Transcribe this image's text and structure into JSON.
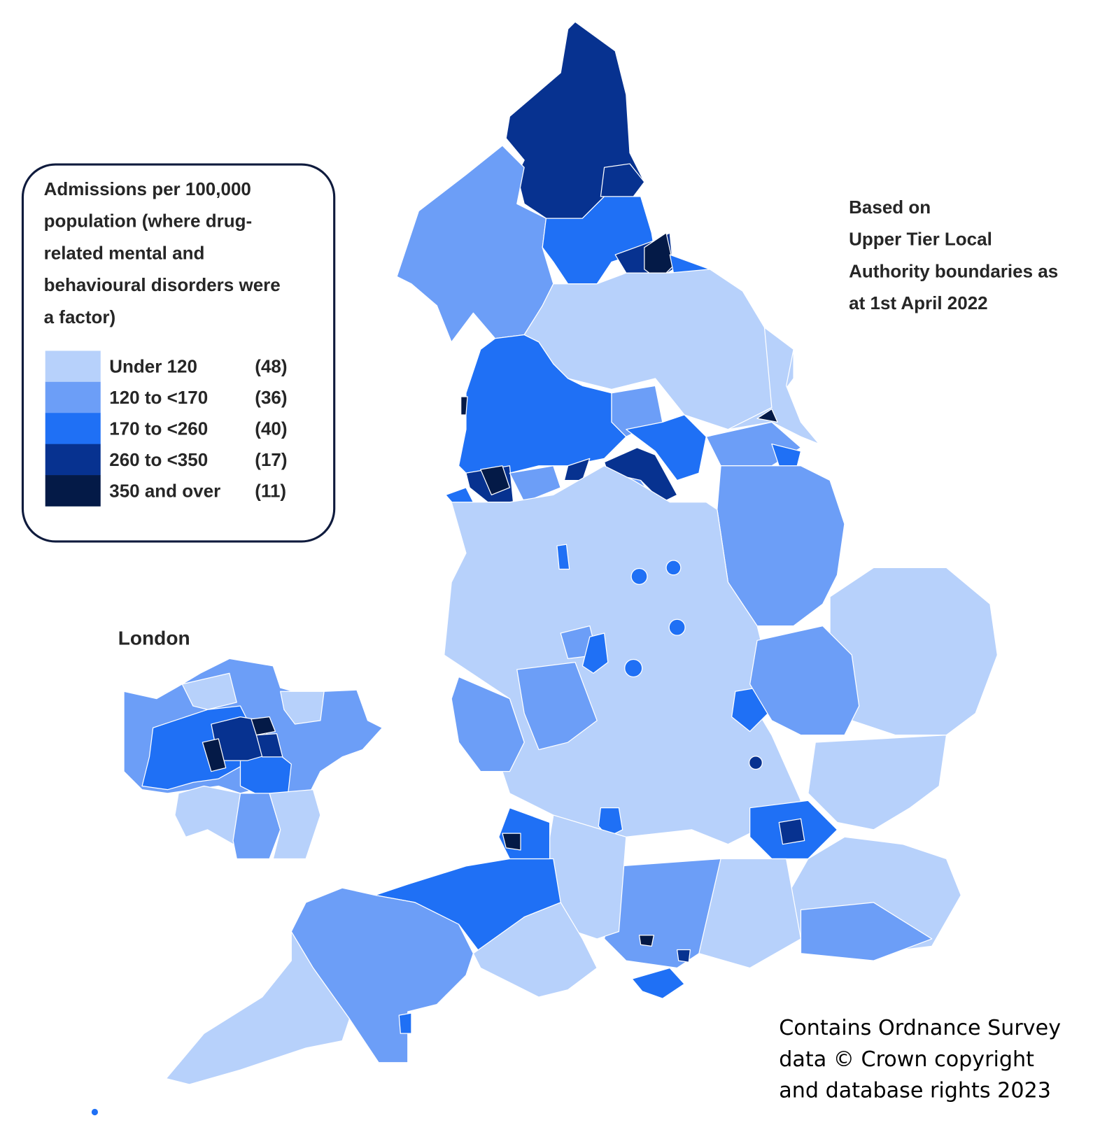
{
  "legend": {
    "title": [
      "Admissions per 100,000",
      "population (where drug-",
      "related mental and",
      "behavioural disorders were",
      "a factor)"
    ],
    "items": [
      {
        "label": "Under 120",
        "count": "(48)",
        "color": "#b7d1fb"
      },
      {
        "label": "120 to <170",
        "count": "(36)",
        "color": "#6c9ef7"
      },
      {
        "label": "170 to <260",
        "count": "(40)",
        "color": "#1f70f5"
      },
      {
        "label": "260 to <350",
        "count": "(17)",
        "color": "#073290"
      },
      {
        "label": "350 and over",
        "count": "(11)",
        "color": "#041a47"
      }
    ]
  },
  "inset_label": "London",
  "note": [
    "Based on",
    "Upper Tier Local",
    "Authority boundaries as",
    "at 1st April 2022"
  ],
  "copyright": [
    "Contains Ordnance Survey",
    "data © Crown copyright",
    "and  database rights 2023"
  ]
}
